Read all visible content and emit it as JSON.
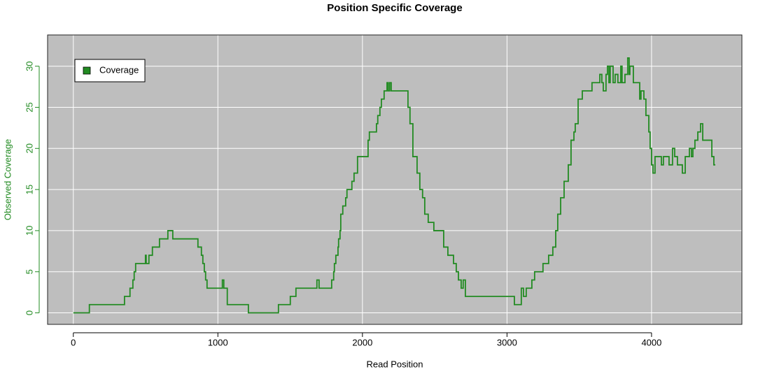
{
  "chart_data": {
    "type": "line",
    "step": true,
    "title": "Position Specific Coverage",
    "x_label": "Read Position",
    "y_label": "Observed Coverage",
    "legend": "topleft",
    "grid": true,
    "background": "#bebebe",
    "x": [
      0,
      111,
      354,
      392,
      412,
      421,
      431,
      499,
      504,
      523,
      547,
      596,
      654,
      688,
      862,
      886,
      896,
      906,
      915,
      925,
      1031,
      1041,
      1065,
      1211,
      1419,
      1501,
      1540,
      1685,
      1700,
      1787,
      1801,
      1806,
      1816,
      1831,
      1835,
      1845,
      1850,
      1864,
      1884,
      1893,
      1927,
      1942,
      1966,
      2039,
      2048,
      2097,
      2106,
      2121,
      2131,
      2150,
      2170,
      2179,
      2189,
      2199,
      2228,
      2315,
      2329,
      2349,
      2378,
      2397,
      2416,
      2431,
      2455,
      2494,
      2562,
      2591,
      2630,
      2649,
      2664,
      2683,
      2697,
      2712,
      3051,
      3099,
      3114,
      3133,
      3172,
      3191,
      3249,
      3288,
      3317,
      3337,
      3351,
      3371,
      3395,
      3424,
      3443,
      3463,
      3472,
      3492,
      3521,
      3588,
      3642,
      3656,
      3666,
      3685,
      3695,
      3705,
      3714,
      3734,
      3748,
      3767,
      3787,
      3796,
      3816,
      3835,
      3845,
      3850,
      3874,
      3918,
      3927,
      3947,
      3961,
      3981,
      3990,
      4000,
      4010,
      4024,
      4068,
      4082,
      4121,
      4145,
      4160,
      4179,
      4213,
      4233,
      4262,
      4276,
      4286,
      4300,
      4320,
      4339,
      4354,
      4417,
      4431,
      4441
    ],
    "series": [
      {
        "name": "Coverage",
        "color": "#228b22",
        "values": [
          0,
          1,
          2,
          3,
          4,
          5,
          6,
          7,
          6,
          7,
          8,
          9,
          10,
          9,
          8,
          7,
          6,
          5,
          4,
          3,
          4,
          3,
          1,
          0,
          1,
          2,
          3,
          4,
          3,
          4,
          5,
          6,
          7,
          8,
          9,
          10,
          12,
          13,
          14,
          15,
          16,
          17,
          19,
          21,
          22,
          23,
          24,
          25,
          26,
          27,
          28,
          27,
          28,
          27,
          27,
          25,
          23,
          19,
          17,
          15,
          14,
          12,
          11,
          10,
          8,
          7,
          6,
          5,
          4,
          3,
          4,
          2,
          1,
          3,
          2,
          3,
          4,
          5,
          6,
          7,
          8,
          10,
          12,
          14,
          16,
          18,
          21,
          22,
          23,
          26,
          27,
          28,
          29,
          28,
          27,
          29,
          30,
          28,
          30,
          28,
          29,
          28,
          30,
          28,
          29,
          31,
          29,
          30,
          28,
          26,
          27,
          26,
          24,
          22,
          20,
          18,
          17,
          19,
          18,
          19,
          18,
          20,
          19,
          18,
          17,
          19,
          20,
          19,
          20,
          21,
          22,
          23,
          21,
          19,
          18,
          18
        ]
      }
    ],
    "xlim": [
      -178,
      4625
    ],
    "ylim": [
      -1.4,
      33.8
    ],
    "xticks": [
      0,
      1000,
      2000,
      3000,
      4000
    ],
    "yticks": [
      0,
      5,
      10,
      15,
      20,
      25,
      30
    ]
  }
}
